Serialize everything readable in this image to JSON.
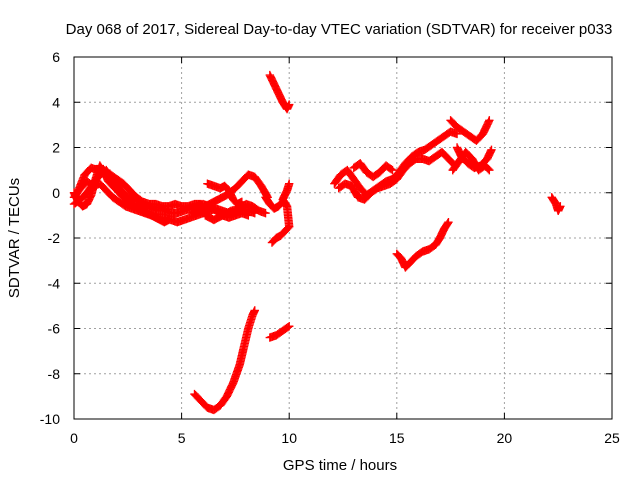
{
  "chart_data": {
    "type": "scatter",
    "title": "Day 068 of 2017, Sidereal Day-to-day VTEC variation (SDTVAR) for receiver p033",
    "xlabel": "GPS time / hours",
    "ylabel": "SDTVAR / TECUs",
    "xlim": [
      0,
      25
    ],
    "ylim": [
      -10,
      6
    ],
    "xticks": [
      "0",
      "5",
      "10",
      "15",
      "20",
      "25"
    ],
    "yticks": [
      "-10",
      "-8",
      "-6",
      "-4",
      "-2",
      "0",
      "2",
      "4",
      "6"
    ],
    "grid": true,
    "marker": "plus",
    "color": "#ff0000",
    "series": [
      {
        "tracks": [
          [
            [
              0.0,
              -0.2
            ],
            [
              0.3,
              0.2
            ],
            [
              0.6,
              0.5
            ],
            [
              0.9,
              0.3
            ],
            [
              1.2,
              0.4
            ],
            [
              1.5,
              0.1
            ],
            [
              1.8,
              -0.2
            ],
            [
              2.1,
              -0.4
            ],
            [
              2.4,
              -0.6
            ],
            [
              2.7,
              -0.7
            ],
            [
              3.0,
              -0.8
            ],
            [
              3.3,
              -0.9
            ],
            [
              3.6,
              -1.0
            ],
            [
              3.9,
              -1.1
            ],
            [
              4.2,
              -1.1
            ],
            [
              4.5,
              -1.2
            ],
            [
              4.8,
              -1.3
            ],
            [
              5.1,
              -1.2
            ],
            [
              5.4,
              -1.1
            ],
            [
              5.7,
              -1.0
            ],
            [
              6.0,
              -0.9
            ],
            [
              6.3,
              -0.8
            ],
            [
              6.6,
              -0.7
            ],
            [
              6.9,
              -0.8
            ],
            [
              7.2,
              -0.9
            ],
            [
              7.5,
              -0.8
            ],
            [
              7.8,
              -0.7
            ],
            [
              8.1,
              -0.8
            ],
            [
              8.4,
              -0.9
            ]
          ],
          [
            [
              0.0,
              -0.5
            ],
            [
              0.3,
              -0.3
            ],
            [
              0.6,
              0.0
            ],
            [
              0.9,
              0.4
            ],
            [
              1.2,
              0.8
            ],
            [
              1.5,
              1.0
            ],
            [
              1.8,
              0.6
            ],
            [
              2.1,
              0.2
            ],
            [
              2.4,
              -0.1
            ],
            [
              2.7,
              -0.3
            ],
            [
              3.0,
              -0.4
            ],
            [
              3.3,
              -0.6
            ],
            [
              3.6,
              -0.7
            ],
            [
              3.9,
              -0.8
            ],
            [
              4.2,
              -0.8
            ],
            [
              4.5,
              -0.9
            ],
            [
              4.8,
              -0.9
            ],
            [
              5.1,
              -0.8
            ],
            [
              5.4,
              -0.7
            ],
            [
              5.7,
              -0.6
            ],
            [
              6.0,
              -0.5
            ],
            [
              6.3,
              -0.6
            ],
            [
              6.6,
              -0.8
            ],
            [
              6.9,
              -1.0
            ],
            [
              7.2,
              -1.1
            ],
            [
              7.5,
              -1.0
            ],
            [
              7.8,
              -0.9
            ],
            [
              8.1,
              -1.0
            ]
          ],
          [
            [
              0.2,
              0.1
            ],
            [
              0.5,
              0.8
            ],
            [
              0.8,
              1.1
            ],
            [
              1.1,
              1.0
            ],
            [
              1.4,
              0.9
            ],
            [
              1.7,
              0.8
            ],
            [
              2.0,
              0.6
            ],
            [
              2.3,
              0.4
            ],
            [
              2.6,
              0.1
            ],
            [
              2.9,
              -0.2
            ],
            [
              3.2,
              -0.4
            ],
            [
              3.5,
              -0.5
            ],
            [
              3.8,
              -0.5
            ],
            [
              4.1,
              -0.6
            ],
            [
              4.4,
              -0.6
            ],
            [
              4.7,
              -0.5
            ],
            [
              5.0,
              -0.6
            ],
            [
              5.3,
              -0.6
            ],
            [
              5.6,
              -0.5
            ],
            [
              5.9,
              -0.5
            ]
          ],
          [
            [
              0.0,
              0.0
            ],
            [
              0.2,
              -0.4
            ],
            [
              0.4,
              -0.6
            ],
            [
              0.6,
              -0.5
            ],
            [
              0.8,
              -0.1
            ],
            [
              1.0,
              0.6
            ],
            [
              1.2,
              1.2
            ],
            [
              1.4,
              0.9
            ],
            [
              1.6,
              0.5
            ],
            [
              1.8,
              0.3
            ],
            [
              2.0,
              0.1
            ],
            [
              2.2,
              -0.1
            ],
            [
              2.4,
              -0.3
            ],
            [
              2.6,
              -0.5
            ],
            [
              2.8,
              -0.6
            ],
            [
              3.0,
              -0.7
            ],
            [
              3.2,
              -0.8
            ],
            [
              3.4,
              -0.9
            ],
            [
              3.6,
              -1.0
            ],
            [
              3.8,
              -1.1
            ],
            [
              4.0,
              -1.2
            ],
            [
              4.2,
              -1.3
            ],
            [
              4.4,
              -1.2
            ]
          ],
          [
            [
              5.5,
              -0.9
            ],
            [
              5.9,
              -0.7
            ],
            [
              6.3,
              -0.5
            ],
            [
              6.7,
              -0.3
            ],
            [
              7.1,
              -0.1
            ],
            [
              7.5,
              0.2
            ],
            [
              7.8,
              0.5
            ],
            [
              8.1,
              0.8
            ],
            [
              8.4,
              0.7
            ],
            [
              8.7,
              0.3
            ],
            [
              9.0,
              -0.2
            ]
          ],
          [
            [
              6.1,
              -1.0
            ],
            [
              6.5,
              -1.2
            ],
            [
              6.9,
              -1.0
            ],
            [
              7.3,
              -0.8
            ],
            [
              7.7,
              -0.7
            ],
            [
              8.0,
              -0.5
            ],
            [
              8.3,
              -0.6
            ],
            [
              8.6,
              -0.8
            ],
            [
              8.9,
              -0.9
            ]
          ],
          [
            [
              6.2,
              0.4
            ],
            [
              6.5,
              0.3
            ],
            [
              6.8,
              0.2
            ],
            [
              7.0,
              0.3
            ],
            [
              7.2,
              0.1
            ],
            [
              7.4,
              -0.3
            ],
            [
              7.6,
              -0.5
            ],
            [
              7.8,
              -0.4
            ]
          ],
          [
            [
              9.1,
              5.2
            ],
            [
              9.3,
              4.8
            ],
            [
              9.5,
              4.4
            ],
            [
              9.7,
              4.0
            ],
            [
              9.9,
              3.7
            ],
            [
              10.0,
              3.9
            ]
          ],
          [
            [
              9.2,
              -2.2
            ],
            [
              9.4,
              -2.0
            ],
            [
              9.6,
              -1.9
            ],
            [
              9.8,
              -1.7
            ],
            [
              10.0,
              -1.5
            ],
            [
              9.9,
              -0.6
            ],
            [
              9.7,
              -0.3
            ],
            [
              9.9,
              0.1
            ],
            [
              10.0,
              0.4
            ]
          ],
          [
            [
              8.9,
              -0.2
            ],
            [
              9.1,
              -0.5
            ],
            [
              9.3,
              -0.7
            ],
            [
              9.5,
              -0.6
            ],
            [
              9.7,
              -0.4
            ]
          ],
          [
            [
              9.1,
              -6.4
            ],
            [
              9.4,
              -6.3
            ],
            [
              9.7,
              -6.1
            ],
            [
              10.0,
              -5.9
            ]
          ],
          [
            [
              5.6,
              -8.9
            ],
            [
              5.9,
              -9.2
            ],
            [
              6.2,
              -9.5
            ],
            [
              6.5,
              -9.6
            ],
            [
              6.8,
              -9.4
            ],
            [
              7.1,
              -9.0
            ],
            [
              7.4,
              -8.4
            ],
            [
              7.7,
              -7.6
            ],
            [
              7.9,
              -6.8
            ],
            [
              8.1,
              -6.0
            ],
            [
              8.3,
              -5.4
            ],
            [
              8.4,
              -5.2
            ]
          ],
          [
            [
              12.1,
              0.4
            ],
            [
              12.4,
              0.8
            ],
            [
              12.7,
              1.0
            ],
            [
              13.0,
              0.6
            ],
            [
              13.3,
              0.2
            ],
            [
              13.6,
              -0.1
            ],
            [
              13.9,
              0.1
            ],
            [
              14.2,
              0.3
            ],
            [
              14.5,
              0.5
            ],
            [
              14.8,
              0.6
            ],
            [
              15.1,
              0.9
            ],
            [
              15.4,
              1.3
            ],
            [
              15.7,
              1.6
            ],
            [
              16.0,
              1.8
            ],
            [
              16.3,
              1.9
            ],
            [
              16.6,
              2.1
            ],
            [
              16.9,
              2.3
            ],
            [
              17.2,
              2.5
            ],
            [
              17.5,
              2.7
            ],
            [
              17.8,
              2.6
            ]
          ],
          [
            [
              12.3,
              0.2
            ],
            [
              12.6,
              0.4
            ],
            [
              12.9,
              0.3
            ],
            [
              13.2,
              -0.2
            ],
            [
              13.5,
              -0.3
            ],
            [
              13.8,
              0.0
            ],
            [
              14.1,
              0.2
            ],
            [
              14.4,
              0.3
            ],
            [
              14.7,
              0.4
            ],
            [
              15.0,
              0.6
            ],
            [
              15.3,
              1.0
            ],
            [
              15.6,
              1.3
            ],
            [
              15.9,
              1.5
            ],
            [
              16.2,
              1.5
            ],
            [
              16.5,
              1.4
            ],
            [
              16.8,
              1.6
            ],
            [
              17.1,
              1.8
            ],
            [
              17.4,
              1.5
            ],
            [
              17.7,
              1.2
            ]
          ],
          [
            [
              13.0,
              1.1
            ],
            [
              13.3,
              1.3
            ],
            [
              13.6,
              0.9
            ],
            [
              13.9,
              0.7
            ],
            [
              14.2,
              0.9
            ],
            [
              14.5,
              1.2
            ],
            [
              14.8,
              1.0
            ]
          ],
          [
            [
              17.5,
              3.2
            ],
            [
              17.8,
              2.9
            ],
            [
              18.1,
              2.7
            ],
            [
              18.4,
              2.5
            ],
            [
              18.7,
              2.3
            ],
            [
              19.0,
              2.6
            ],
            [
              19.3,
              3.2
            ]
          ],
          [
            [
              17.8,
              2.0
            ],
            [
              18.0,
              1.6
            ],
            [
              18.3,
              1.3
            ],
            [
              18.6,
              1.1
            ],
            [
              18.9,
              1.2
            ],
            [
              19.2,
              1.5
            ],
            [
              19.4,
              1.9
            ]
          ],
          [
            [
              17.6,
              1.0
            ],
            [
              17.9,
              1.4
            ],
            [
              18.2,
              1.8
            ],
            [
              18.5,
              1.5
            ],
            [
              18.8,
              1.0
            ],
            [
              19.1,
              1.2
            ],
            [
              19.3,
              1.0
            ]
          ],
          [
            [
              15.0,
              -2.7
            ],
            [
              15.2,
              -2.9
            ],
            [
              15.4,
              -3.3
            ],
            [
              15.6,
              -3.1
            ],
            [
              15.9,
              -2.8
            ],
            [
              16.2,
              -2.6
            ],
            [
              16.5,
              -2.5
            ],
            [
              16.8,
              -2.3
            ],
            [
              17.0,
              -2.0
            ],
            [
              17.2,
              -1.6
            ],
            [
              17.4,
              -1.3
            ]
          ],
          [
            [
              22.2,
              -0.2
            ],
            [
              22.4,
              -0.5
            ],
            [
              22.5,
              -0.8
            ],
            [
              22.6,
              -0.6
            ]
          ]
        ]
      }
    ]
  }
}
